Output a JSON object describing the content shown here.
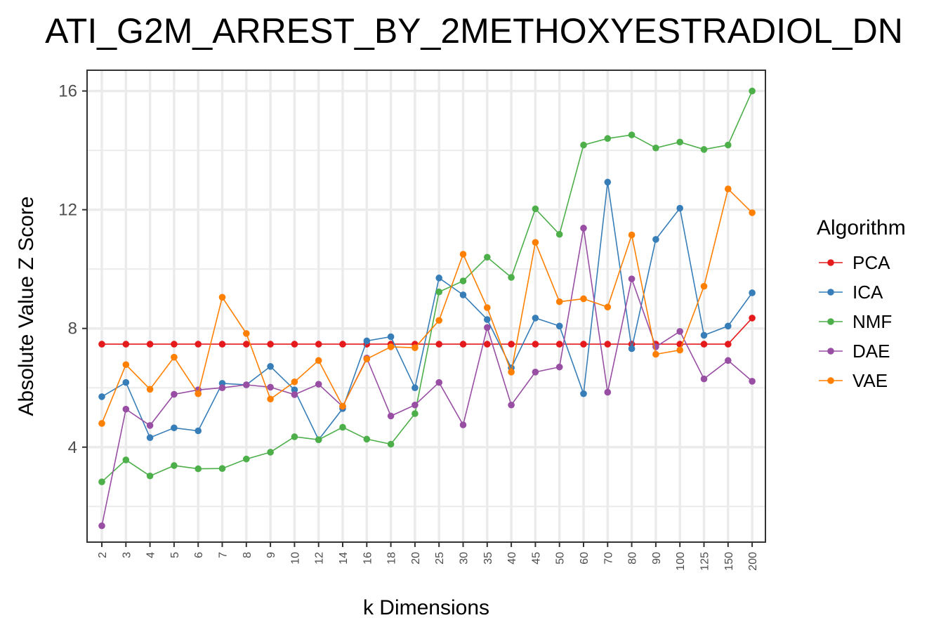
{
  "chart_data": {
    "type": "line",
    "title": "ATI_G2M_ARREST_BY_2METHOXYESTRADIOL_DN",
    "xlabel": "k Dimensions",
    "ylabel": "Absolute Value Z Score",
    "categories": [
      "2",
      "3",
      "4",
      "5",
      "6",
      "7",
      "8",
      "9",
      "10",
      "12",
      "14",
      "16",
      "18",
      "20",
      "25",
      "30",
      "35",
      "40",
      "45",
      "50",
      "60",
      "70",
      "80",
      "90",
      "100",
      "125",
      "150",
      "200"
    ],
    "ylim": [
      0.8,
      16.7
    ],
    "yticks": [
      4,
      8,
      12,
      16
    ],
    "grid": true,
    "legend_title": "Algorithm",
    "legend_position": "right",
    "series": [
      {
        "name": "PCA",
        "color": "#E41A1C",
        "values": [
          7.47,
          7.47,
          7.47,
          7.47,
          7.47,
          7.47,
          7.47,
          7.47,
          7.47,
          7.47,
          7.47,
          7.47,
          7.47,
          7.47,
          7.47,
          7.47,
          7.47,
          7.47,
          7.47,
          7.47,
          7.47,
          7.47,
          7.47,
          7.47,
          7.47,
          7.47,
          7.47,
          8.35
        ]
      },
      {
        "name": "ICA",
        "color": "#377EB8",
        "values": [
          5.7,
          6.18,
          4.32,
          4.65,
          4.55,
          6.15,
          6.1,
          6.72,
          5.93,
          4.25,
          5.3,
          7.58,
          7.72,
          6.0,
          9.7,
          9.13,
          8.3,
          6.67,
          8.35,
          8.08,
          5.8,
          12.93,
          7.32,
          11.0,
          12.05,
          7.77,
          8.08,
          9.2
        ]
      },
      {
        "name": "NMF",
        "color": "#4DAF4A",
        "values": [
          2.83,
          3.57,
          3.03,
          3.38,
          3.27,
          3.28,
          3.6,
          3.83,
          4.35,
          4.25,
          4.67,
          4.27,
          4.1,
          5.13,
          9.23,
          9.6,
          10.4,
          9.72,
          12.03,
          11.17,
          14.18,
          14.4,
          14.52,
          14.08,
          14.28,
          14.03,
          14.18,
          16.0
        ]
      },
      {
        "name": "DAE",
        "color": "#984EA3",
        "values": [
          1.35,
          5.28,
          4.73,
          5.78,
          5.93,
          6.0,
          6.1,
          6.02,
          5.77,
          6.12,
          5.37,
          7.0,
          5.05,
          5.42,
          6.18,
          4.75,
          8.03,
          5.42,
          6.53,
          6.7,
          11.38,
          5.85,
          9.67,
          7.38,
          7.9,
          6.3,
          6.92,
          6.22
        ]
      },
      {
        "name": "VAE",
        "color": "#FF7F00",
        "values": [
          4.8,
          6.78,
          5.95,
          7.03,
          5.8,
          9.05,
          7.83,
          5.62,
          6.2,
          6.92,
          5.38,
          6.97,
          7.38,
          7.35,
          8.27,
          10.5,
          8.7,
          6.53,
          10.9,
          8.9,
          9.0,
          8.72,
          11.15,
          7.13,
          7.27,
          9.42,
          12.7,
          11.9
        ]
      }
    ]
  }
}
